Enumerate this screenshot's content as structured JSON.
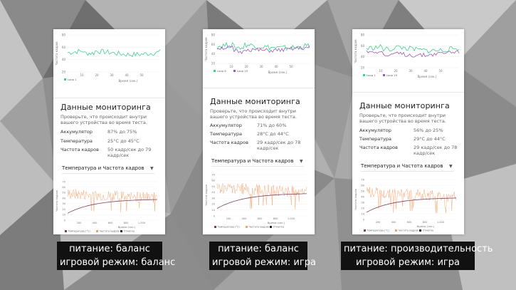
{
  "common": {
    "heading": "Данные мониторинга",
    "description": "Проверьте, что происходит внутри вашего устройства во время теста.",
    "labels": {
      "battery": "Аккумулятор",
      "temperature": "Температура",
      "framerate": "Частота кадров"
    },
    "dropdown": "Температура и Частота кадров",
    "top_chart": {
      "ylabel": "Частота кадров",
      "xlabel": "Время (сек.)",
      "xticks": [
        "10",
        "20",
        "30",
        "40",
        "50"
      ]
    },
    "bottom_chart": {
      "ylabel": "Частота кадров",
      "xlabel": "Время (сек.)",
      "xticks": [
        "200",
        "400",
        "600",
        "800",
        "1.000"
      ],
      "yticks": [
        "70",
        "60",
        "50",
        "40",
        "30",
        "20",
        "10",
        "0"
      ],
      "legend": [
        "Температура (°C)",
        "Частота кадров",
        "Отметка"
      ]
    },
    "colors": {
      "loop1": "#3ecf8e",
      "loop2": "#9b59b6",
      "fps": "#f5a06a",
      "temp": "#7b3f61",
      "mark": "#222222"
    }
  },
  "panels": [
    {
      "battery": "87% до 75%",
      "temperature": "25°C до 45°C",
      "framerate": "50 кадр/сек до 79 кадр/сек",
      "legend": [
        "Loop 1"
      ],
      "yticks": [
        "80",
        "60",
        "40",
        "20"
      ],
      "caption": [
        "питание: баланс",
        "игровой режим: баланс"
      ]
    },
    {
      "battery": "71% до 60%",
      "temperature": "28°C до 44°C",
      "framerate": "29 кадр/сек до 78 кадр/сек",
      "legend": [
        "Loop 6",
        "Loop 19"
      ],
      "yticks": [
        "80",
        "60",
        "40",
        "20"
      ],
      "caption": [
        "питание: баланс",
        "игровой режим: игра"
      ]
    },
    {
      "battery": "56% до 25%",
      "temperature": "29°C до 44°C",
      "framerate": "29 кадр/сек до 78 кадр/сек",
      "legend": [
        "Loop 1",
        "Loop 19"
      ],
      "yticks": [
        "80",
        "60",
        "40",
        "20"
      ],
      "caption": [
        "питание: производительность",
        "игровой режим: игра"
      ]
    }
  ]
}
